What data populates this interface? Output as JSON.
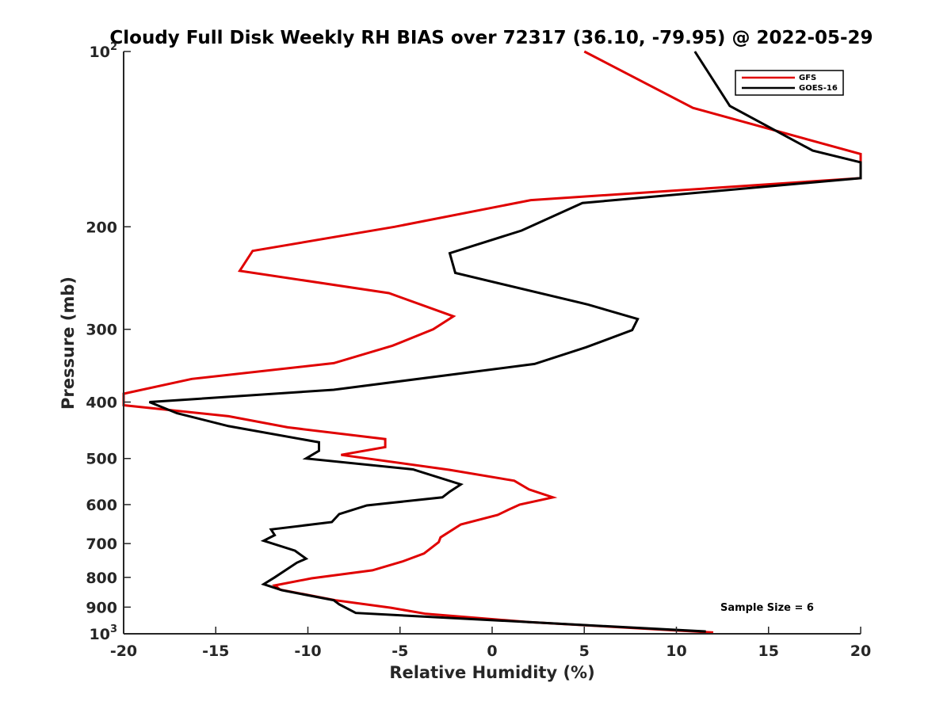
{
  "chart_data": {
    "type": "line",
    "title": "Cloudy Full Disk Weekly RH BIAS over 72317 (36.10, -79.95) @ 2022-05-29",
    "xlabel": "Relative Humidity (%)",
    "ylabel": "Pressure (mb)",
    "xlim": [
      -20,
      20
    ],
    "ylim": [
      100,
      1000
    ],
    "y_scale": "log",
    "y_reversed": true,
    "grid": false,
    "legend_position": "top-right",
    "x_ticks": [
      "-20",
      "-15",
      "-10",
      "-5",
      "0",
      "5",
      "10",
      "15",
      "20"
    ],
    "y_ticks": [
      {
        "value": 100,
        "base": "10",
        "exp": "2"
      },
      {
        "value": 200,
        "label": "200"
      },
      {
        "value": 300,
        "label": "300"
      },
      {
        "value": 400,
        "label": "400"
      },
      {
        "value": 500,
        "label": "500"
      },
      {
        "value": 600,
        "label": "600"
      },
      {
        "value": 700,
        "label": "700"
      },
      {
        "value": 800,
        "label": "800"
      },
      {
        "value": 900,
        "label": "900"
      },
      {
        "value": 1000,
        "base": "10",
        "exp": "3"
      }
    ],
    "series": [
      {
        "name": "GFS",
        "color": "#e00000",
        "points": [
          [
            5.0,
            100
          ],
          [
            10.9,
            125
          ],
          [
            20.0,
            150
          ],
          [
            20.0,
            165
          ],
          [
            2.1,
            180
          ],
          [
            -5.3,
            200
          ],
          [
            -13.0,
            220
          ],
          [
            -13.7,
            238
          ],
          [
            -5.6,
            260
          ],
          [
            -2.1,
            285
          ],
          [
            -3.2,
            300
          ],
          [
            -5.4,
            320
          ],
          [
            -8.6,
            343
          ],
          [
            -16.3,
            365
          ],
          [
            -20.0,
            387
          ],
          [
            -20.0,
            405
          ],
          [
            -14.3,
            423
          ],
          [
            -11.1,
            442
          ],
          [
            -5.8,
            463
          ],
          [
            -5.8,
            478
          ],
          [
            -8.2,
            493
          ],
          [
            -2.3,
            523
          ],
          [
            1.2,
            546
          ],
          [
            2.0,
            565
          ],
          [
            3.3,
            583
          ],
          [
            1.5,
            600
          ],
          [
            0.9,
            612
          ],
          [
            0.3,
            625
          ],
          [
            -1.7,
            649
          ],
          [
            -2.8,
            683
          ],
          [
            -2.9,
            696
          ],
          [
            -3.7,
            728
          ],
          [
            -4.9,
            752
          ],
          [
            -6.5,
            778
          ],
          [
            -9.8,
            803
          ],
          [
            -11.8,
            826
          ],
          [
            -11.5,
            840
          ],
          [
            -8.5,
            876
          ],
          [
            -5.5,
            902
          ],
          [
            -3.6,
            924
          ],
          [
            2.0,
            955
          ],
          [
            12.0,
            995
          ]
        ]
      },
      {
        "name": "GOES-16",
        "color": "#000000",
        "points": [
          [
            11.0,
            100
          ],
          [
            12.9,
            124
          ],
          [
            17.4,
            148
          ],
          [
            20.0,
            155
          ],
          [
            20.0,
            165
          ],
          [
            4.9,
            182
          ],
          [
            1.6,
            203
          ],
          [
            -2.3,
            222
          ],
          [
            -2.0,
            240
          ],
          [
            5.2,
            272
          ],
          [
            7.9,
            288
          ],
          [
            7.6,
            301
          ],
          [
            5.1,
            322
          ],
          [
            2.3,
            344
          ],
          [
            -8.6,
            381
          ],
          [
            -18.6,
            400
          ],
          [
            -17.1,
            418
          ],
          [
            -14.3,
            440
          ],
          [
            -9.4,
            469
          ],
          [
            -9.4,
            485
          ],
          [
            -10.1,
            500
          ],
          [
            -4.3,
            522
          ],
          [
            -1.7,
            554
          ],
          [
            -2.3,
            570
          ],
          [
            -2.7,
            583
          ],
          [
            -6.8,
            602
          ],
          [
            -8.3,
            623
          ],
          [
            -8.7,
            643
          ],
          [
            -12.0,
            662
          ],
          [
            -11.8,
            677
          ],
          [
            -12.4,
            692
          ],
          [
            -10.7,
            720
          ],
          [
            -10.1,
            743
          ],
          [
            -10.6,
            755
          ],
          [
            -11.8,
            800
          ],
          [
            -12.4,
            822
          ],
          [
            -11.4,
            842
          ],
          [
            -8.6,
            876
          ],
          [
            -8.3,
            890
          ],
          [
            -7.4,
            921
          ],
          [
            11.6,
            991
          ]
        ]
      }
    ],
    "annotations": [
      "Sample Size = 6"
    ]
  }
}
